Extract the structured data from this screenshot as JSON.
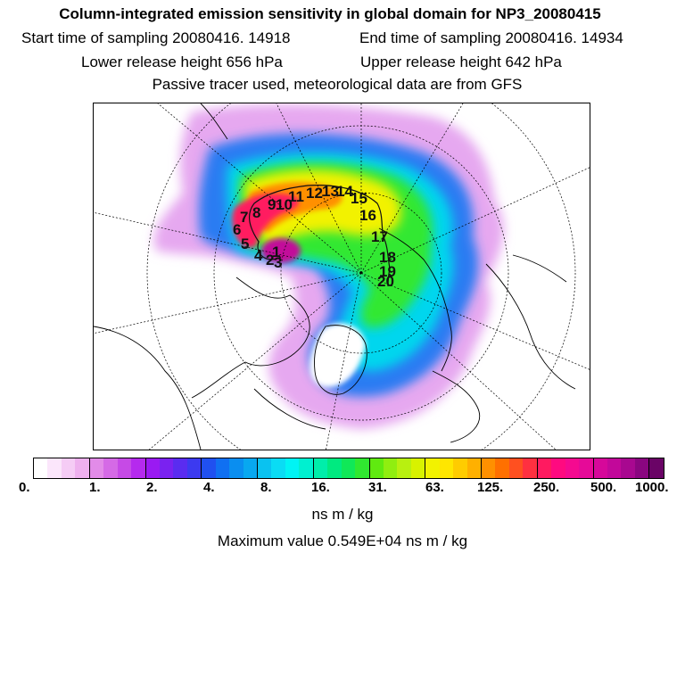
{
  "header": {
    "title": "Column-integrated emission sensitivity in global domain for NP3_20080415",
    "start_time": "Start time of sampling 20080416. 14918",
    "end_time": "End time of sampling 20080416. 14934",
    "lower_release": "Lower release height  656 hPa",
    "upper_release": "Upper release height  642 hPa",
    "tracer_info": "Passive tracer used, meteorological data are from GFS"
  },
  "map": {
    "projection": "polar-stereographic north",
    "trajectory_labels": [
      "1",
      "2",
      "3",
      "4",
      "5",
      "6",
      "7",
      "8",
      "9",
      "10",
      "11",
      "12",
      "13",
      "14",
      "15",
      "16",
      "17",
      "18",
      "19",
      "20"
    ]
  },
  "colorbar": {
    "tick_labels": [
      "0.",
      "1.",
      "2.",
      "4.",
      "8.",
      "16.",
      "31.",
      "63.",
      "125.",
      "250.",
      "500.",
      "1000."
    ],
    "colors": [
      "#ffffff",
      "#fbe6fb",
      "#f5ccf5",
      "#eeb0ee",
      "#e28be8",
      "#d56ae6",
      "#c64ae6",
      "#b52aee",
      "#9a1af2",
      "#7a22f0",
      "#5a2cf0",
      "#3c3af0",
      "#2050f0",
      "#1070f2",
      "#0a8ef0",
      "#08a8f0",
      "#0ac2f0",
      "#0adcf4",
      "#00f4f4",
      "#00f0d0",
      "#00eeaa",
      "#00ea80",
      "#10e858",
      "#30e830",
      "#60ea10",
      "#90ee10",
      "#b8f010",
      "#d8f200",
      "#f2f200",
      "#ffe600",
      "#ffcc00",
      "#ffb000",
      "#ff9000",
      "#ff7000",
      "#ff5020",
      "#ff3040",
      "#ff1a60",
      "#ff0a80",
      "#f50a90",
      "#e60a98",
      "#d6089a",
      "#c2089a",
      "#a80890",
      "#8a0680",
      "#6a0466"
    ],
    "units": "ns m / kg"
  },
  "max_value": "Maximum value  0.549E+04 ns m / kg"
}
